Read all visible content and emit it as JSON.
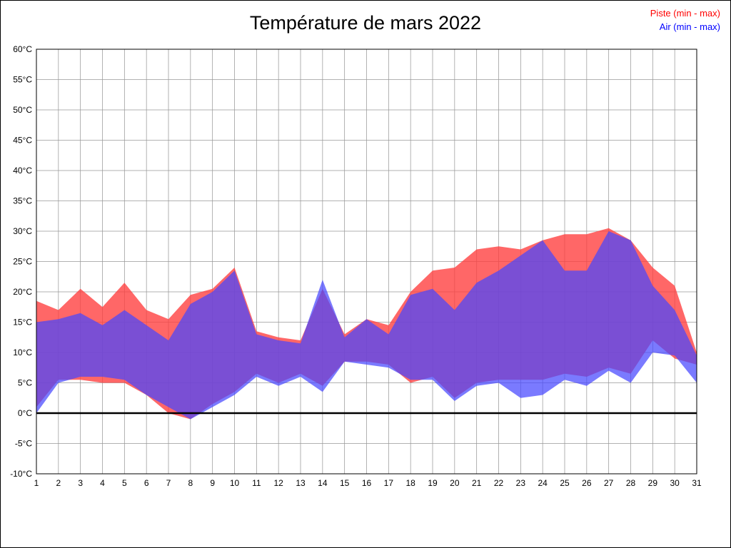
{
  "chart_data": {
    "type": "area",
    "title": "Température de mars 2022",
    "xlabel": "",
    "ylabel": "",
    "ylim": [
      -10,
      60
    ],
    "ytick_step": 5,
    "grid": true,
    "legend_position": "top-right",
    "x": [
      1,
      2,
      3,
      4,
      5,
      6,
      7,
      8,
      9,
      10,
      11,
      12,
      13,
      14,
      15,
      16,
      17,
      18,
      19,
      20,
      21,
      22,
      23,
      24,
      25,
      26,
      27,
      28,
      29,
      30,
      31
    ],
    "x_ticks": [
      "1",
      "2",
      "3",
      "4",
      "5",
      "6",
      "7",
      "8",
      "9",
      "10",
      "11",
      "12",
      "13",
      "14",
      "15",
      "16",
      "17",
      "18",
      "19",
      "20",
      "21",
      "22",
      "23",
      "24",
      "25",
      "26",
      "27",
      "28",
      "29",
      "30",
      "31"
    ],
    "y_ticks": [
      "60°C",
      "55°C",
      "50°C",
      "45°C",
      "40°C",
      "35°C",
      "30°C",
      "25°C",
      "20°C",
      "15°C",
      "10°C",
      "5°C",
      "0°C",
      "-5°C",
      "-10°C"
    ],
    "series": [
      {
        "name": "Piste (min - max)",
        "legend_color": "#ff0000",
        "fill_color": "#ff3c3c",
        "fill_opacity": 0.78,
        "min": [
          1,
          5.5,
          5.5,
          5,
          5,
          3,
          0,
          -1,
          1.5,
          3.5,
          6.5,
          5,
          6.5,
          4.5,
          8.5,
          8.5,
          8,
          5,
          6,
          2.5,
          5,
          5.5,
          5.5,
          5.5,
          6.5,
          6,
          7.5,
          6.5,
          12,
          9,
          8
        ],
        "max": [
          18.5,
          17,
          20.5,
          17.5,
          21.5,
          17,
          15.5,
          19.5,
          20.5,
          24,
          13.5,
          12.5,
          12,
          20.5,
          13,
          15.5,
          14.5,
          20,
          23.5,
          24,
          27,
          27.5,
          27,
          28.5,
          29.5,
          29.5,
          30.5,
          28.5,
          24,
          21,
          10
        ]
      },
      {
        "name": "Air (min - max)",
        "legend_color": "#0000ff",
        "fill_color": "#4646ff",
        "fill_opacity": 0.72,
        "min": [
          0,
          5,
          6,
          6,
          5.5,
          3,
          1,
          -1,
          1,
          3,
          6,
          4.5,
          6,
          3.5,
          8.5,
          8,
          7.5,
          5.5,
          5.5,
          2,
          4.5,
          5,
          2.5,
          3,
          5.5,
          4.5,
          7,
          5,
          10,
          9.5,
          5
        ],
        "max": [
          15,
          15.5,
          16.5,
          14.5,
          17,
          14.5,
          12,
          18,
          20,
          23.5,
          13,
          12,
          11.5,
          22,
          12.5,
          15.5,
          13,
          19.5,
          20.5,
          17,
          21.5,
          23.5,
          26,
          28.5,
          23.5,
          23.5,
          30,
          28.5,
          21,
          17,
          9.5
        ]
      }
    ],
    "zero_line_color": "#000000",
    "grid_color": "#999999"
  }
}
